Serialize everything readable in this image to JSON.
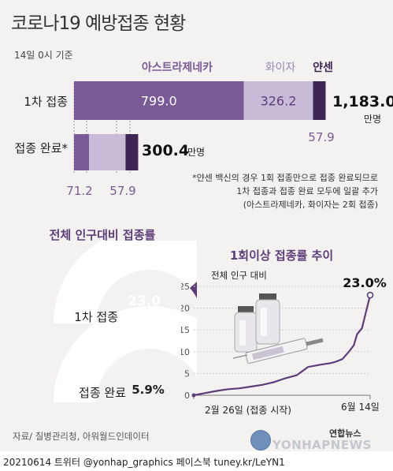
{
  "header": {
    "title": "코로나19 예방접종 현황",
    "date_note": "14일 0시 기준"
  },
  "vaccines": {
    "astrazeneca": "아스트라제네카",
    "pfizer": "화이자",
    "janssen": "얀센"
  },
  "colors": {
    "astrazeneca": "#7a5a96",
    "pfizer": "#c8bbd8",
    "janssen": "#3e2553",
    "accent": "#5c3d78"
  },
  "chart_data": [
    {
      "type": "bar",
      "stacked": true,
      "orientation": "horizontal",
      "categories": [
        "1차 접종",
        "접종 완료*"
      ],
      "series": [
        {
          "name": "아스트라제네카",
          "values": [
            799.0,
            71.2
          ]
        },
        {
          "name": "화이자",
          "values": [
            326.2,
            171.4
          ]
        },
        {
          "name": "얀센",
          "values": [
            57.9,
            57.9
          ]
        }
      ],
      "totals": [
        "1,183.0",
        "300.4"
      ],
      "total_units": [
        "만명",
        "만명"
      ],
      "value_labels": {
        "first": [
          "799.0",
          "326.2",
          "57.9"
        ],
        "complete": [
          "71.2",
          "171.4",
          "57.9"
        ]
      },
      "footnote": [
        "*얀센 백신의 경우 1회 접종만으로 접종 완료되므로",
        "1차 접종과 접종 완료 모두에 일괄 추가",
        "(아스트라제네카, 화이자는 2회 접종)"
      ]
    },
    {
      "type": "pie",
      "title": "전체 인구대비 접종률",
      "gauges": [
        {
          "label": "1차 접종",
          "value": 23.0,
          "value_text": "23.0",
          "unit": "%"
        },
        {
          "label": "접종 완료",
          "value": 5.9,
          "value_text": "5.9%"
        }
      ]
    },
    {
      "type": "line",
      "title": "1회이상 접종률 추이",
      "ylabel": "전체 인구 대비",
      "ylim": [
        0,
        25
      ],
      "yticks": [
        0,
        5,
        10,
        15,
        20,
        25
      ],
      "x_start_label": "2월 26일 (접종 시작)",
      "x_end_label": "6월 14일",
      "end_value_label": "23.0%",
      "x": [
        0,
        7,
        14,
        21,
        28,
        35,
        42,
        49,
        56,
        63,
        70,
        77,
        84,
        87,
        91,
        95,
        98,
        100,
        103,
        106,
        108
      ],
      "values": [
        0.0,
        0.5,
        1.0,
        1.4,
        1.6,
        2.0,
        2.4,
        3.0,
        3.9,
        4.6,
        6.5,
        7.0,
        7.4,
        7.7,
        8.3,
        10.0,
        11.5,
        14.0,
        15.4,
        20.0,
        23.0
      ]
    }
  ],
  "source": "자료/ 질병관리청, 아워월드인데이터",
  "watermark": "YONHAPNEWS",
  "logo_kr": "연합뉴스",
  "footer": "20210614 트위터 @yonhap_graphics  페이스북 tuney.kr/LeYN1"
}
